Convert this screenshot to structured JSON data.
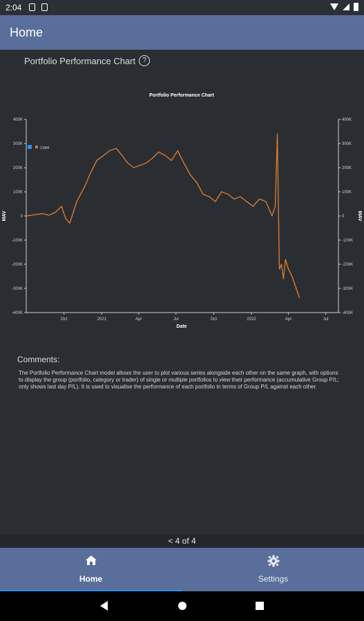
{
  "status_bar": {
    "time": "2:04"
  },
  "app_bar": {
    "title": "Home"
  },
  "chart_section": {
    "heading": "Portfolio Performance Chart",
    "help_icon": "question-circle-icon"
  },
  "chart_data": {
    "type": "line",
    "title": "Portfolio Performance Chart",
    "xlabel": "Date",
    "ylabel": "MAV",
    "ylabel_right": "MAV",
    "ylim": [
      -400000,
      400000
    ],
    "y_ticks": [
      "400K",
      "300K",
      "200K",
      "100K",
      "0",
      "-100K",
      "-200K",
      "-300K",
      "-400K"
    ],
    "x_ticks": [
      "Oct",
      "2021",
      "Apr",
      "Jul",
      "Oct",
      "2022",
      "Apr",
      "Jul"
    ],
    "legend": {
      "position": "top-left",
      "checked": true
    },
    "colors": {
      "series": "#d9782d",
      "background": "#2a2e33",
      "axis": "#cfcfcf"
    },
    "x_range": [
      "2020-07-01",
      "2022-08-01"
    ],
    "series": [
      {
        "name": "CMMI",
        "x": [
          "2020-07-01",
          "2020-07-20",
          "2020-08-10",
          "2020-08-25",
          "2020-09-10",
          "2020-09-25",
          "2020-10-05",
          "2020-10-15",
          "2020-11-01",
          "2020-11-20",
          "2020-12-05",
          "2020-12-20",
          "2021-01-05",
          "2021-01-20",
          "2021-02-05",
          "2021-02-20",
          "2021-03-05",
          "2021-03-20",
          "2021-04-05",
          "2021-04-20",
          "2021-05-05",
          "2021-05-20",
          "2021-06-05",
          "2021-06-20",
          "2021-07-05",
          "2021-07-20",
          "2021-08-05",
          "2021-08-20",
          "2021-09-05",
          "2021-09-20",
          "2021-10-05",
          "2021-10-20",
          "2021-11-05",
          "2021-11-20",
          "2021-12-05",
          "2021-12-20",
          "2022-01-05",
          "2022-01-20",
          "2022-02-05",
          "2022-02-20",
          "2022-02-28",
          "2022-03-05",
          "2022-03-10",
          "2022-03-15",
          "2022-03-20",
          "2022-03-25",
          "2022-04-01",
          "2022-04-10",
          "2022-04-20",
          "2022-04-28"
        ],
        "values": [
          0,
          5000,
          10000,
          3000,
          15000,
          40000,
          -10000,
          -30000,
          60000,
          120000,
          180000,
          230000,
          250000,
          270000,
          280000,
          250000,
          220000,
          200000,
          210000,
          220000,
          240000,
          265000,
          250000,
          230000,
          270000,
          220000,
          170000,
          140000,
          90000,
          80000,
          60000,
          100000,
          90000,
          70000,
          80000,
          60000,
          40000,
          70000,
          60000,
          0,
          40000,
          340000,
          -220000,
          -200000,
          -260000,
          -180000,
          -220000,
          -250000,
          -300000,
          -340000
        ]
      }
    ]
  },
  "comments": {
    "title": "Comments:",
    "body": "The Portfolio Performance Chart model allows the user to plot various series alongside each other on the same graph, with options to display the group (portfolio, category or trader) of single or multiple portfolios to view their performance (accumulative Group P/L; only shows last day P/L). It is used to visualise the performance of each portfolio in terms of Group P/L against each other."
  },
  "pager": {
    "label": "< 4 of 4"
  },
  "bottom_nav": {
    "home": {
      "label": "Home",
      "icon": "home-icon"
    },
    "settings": {
      "label": "Settings",
      "icon": "gear-icon"
    }
  }
}
